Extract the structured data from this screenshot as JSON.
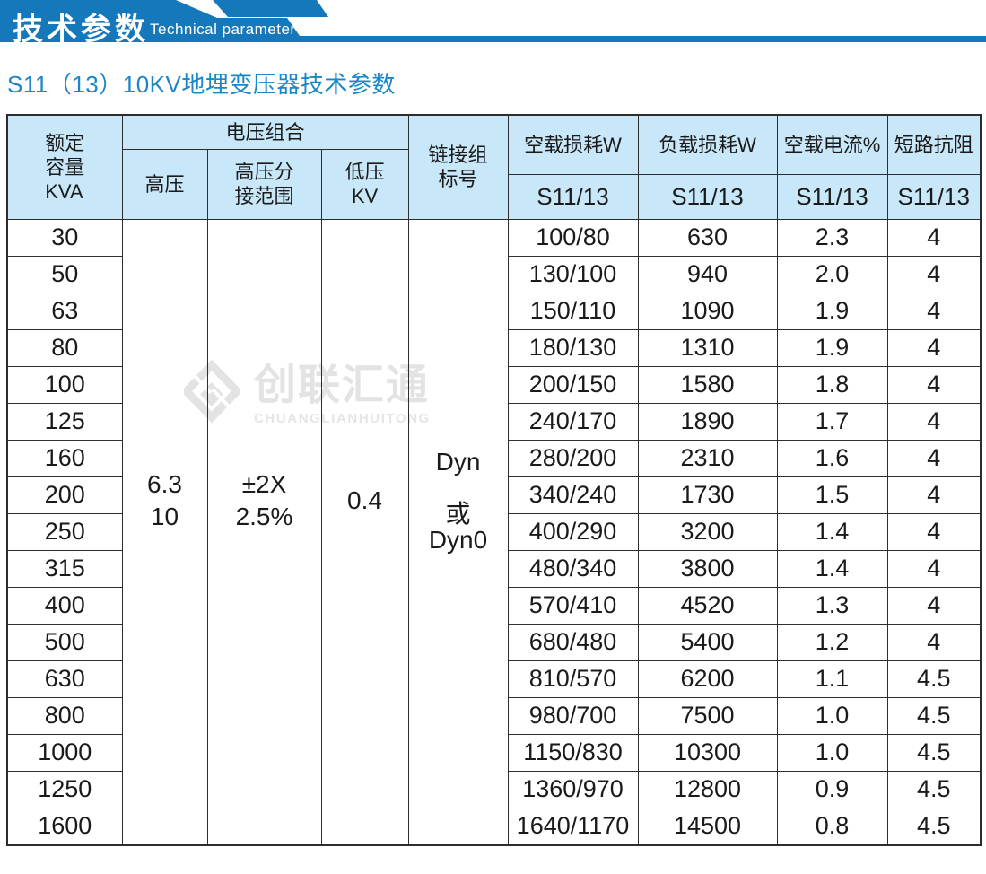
{
  "banner": {
    "title_cn": "技术参数",
    "title_en": "Technical parameter"
  },
  "page_title": "S11（13）10KV地埋变压器技术参数",
  "watermark": {
    "logo_text": "创联汇通",
    "logo_subtext": "CHUANGLIANHUITONG"
  },
  "colors": {
    "banner_blue": "#1478ba",
    "header_fill": "#c8e7f8",
    "title_blue": "#1b86c8",
    "table_border": "#2d2d2d",
    "watermark_gray": "#e3e3e3"
  },
  "table": {
    "header": {
      "rated_capacity": "额定\n容量\nKVA",
      "voltage_combination": "电压组合",
      "high_voltage": "高压",
      "hv_tap_range": "高压分\n接范围",
      "low_voltage": "低压\nKV",
      "connection_group": "链接组\n标号",
      "no_load_loss": "空载损耗W",
      "load_loss": "负载损耗W",
      "no_load_current": "空载电流%",
      "short_circuit_impedance": "短路抗阻",
      "model_label": "S11/13"
    },
    "merged": {
      "high_voltage": "6.3\n10",
      "hv_tap_range": "±2X\n2.5%",
      "low_voltage": "0.4",
      "connection_group": "Dyn\n\n或\nDyn0"
    },
    "rows": [
      {
        "kva": "30",
        "no_load_loss": "100/80",
        "load_loss": "630",
        "no_load_current": "2.3",
        "impedance": "4"
      },
      {
        "kva": "50",
        "no_load_loss": "130/100",
        "load_loss": "940",
        "no_load_current": "2.0",
        "impedance": "4"
      },
      {
        "kva": "63",
        "no_load_loss": "150/110",
        "load_loss": "1090",
        "no_load_current": "1.9",
        "impedance": "4"
      },
      {
        "kva": "80",
        "no_load_loss": "180/130",
        "load_loss": "1310",
        "no_load_current": "1.9",
        "impedance": "4"
      },
      {
        "kva": "100",
        "no_load_loss": "200/150",
        "load_loss": "1580",
        "no_load_current": "1.8",
        "impedance": "4"
      },
      {
        "kva": "125",
        "no_load_loss": "240/170",
        "load_loss": "1890",
        "no_load_current": "1.7",
        "impedance": "4"
      },
      {
        "kva": "160",
        "no_load_loss": "280/200",
        "load_loss": "2310",
        "no_load_current": "1.6",
        "impedance": "4"
      },
      {
        "kva": "200",
        "no_load_loss": "340/240",
        "load_loss": "1730",
        "no_load_current": "1.5",
        "impedance": "4"
      },
      {
        "kva": "250",
        "no_load_loss": "400/290",
        "load_loss": "3200",
        "no_load_current": "1.4",
        "impedance": "4"
      },
      {
        "kva": "315",
        "no_load_loss": "480/340",
        "load_loss": "3800",
        "no_load_current": "1.4",
        "impedance": "4"
      },
      {
        "kva": "400",
        "no_load_loss": "570/410",
        "load_loss": "4520",
        "no_load_current": "1.3",
        "impedance": "4"
      },
      {
        "kva": "500",
        "no_load_loss": "680/480",
        "load_loss": "5400",
        "no_load_current": "1.2",
        "impedance": "4"
      },
      {
        "kva": "630",
        "no_load_loss": "810/570",
        "load_loss": "6200",
        "no_load_current": "1.1",
        "impedance": "4.5"
      },
      {
        "kva": "800",
        "no_load_loss": "980/700",
        "load_loss": "7500",
        "no_load_current": "1.0",
        "impedance": "4.5"
      },
      {
        "kva": "1000",
        "no_load_loss": "1150/830",
        "load_loss": "10300",
        "no_load_current": "1.0",
        "impedance": "4.5"
      },
      {
        "kva": "1250",
        "no_load_loss": "1360/970",
        "load_loss": "12800",
        "no_load_current": "0.9",
        "impedance": "4.5"
      },
      {
        "kva": "1600",
        "no_load_loss": "1640/1170",
        "load_loss": "14500",
        "no_load_current": "0.8",
        "impedance": "4.5"
      }
    ]
  }
}
